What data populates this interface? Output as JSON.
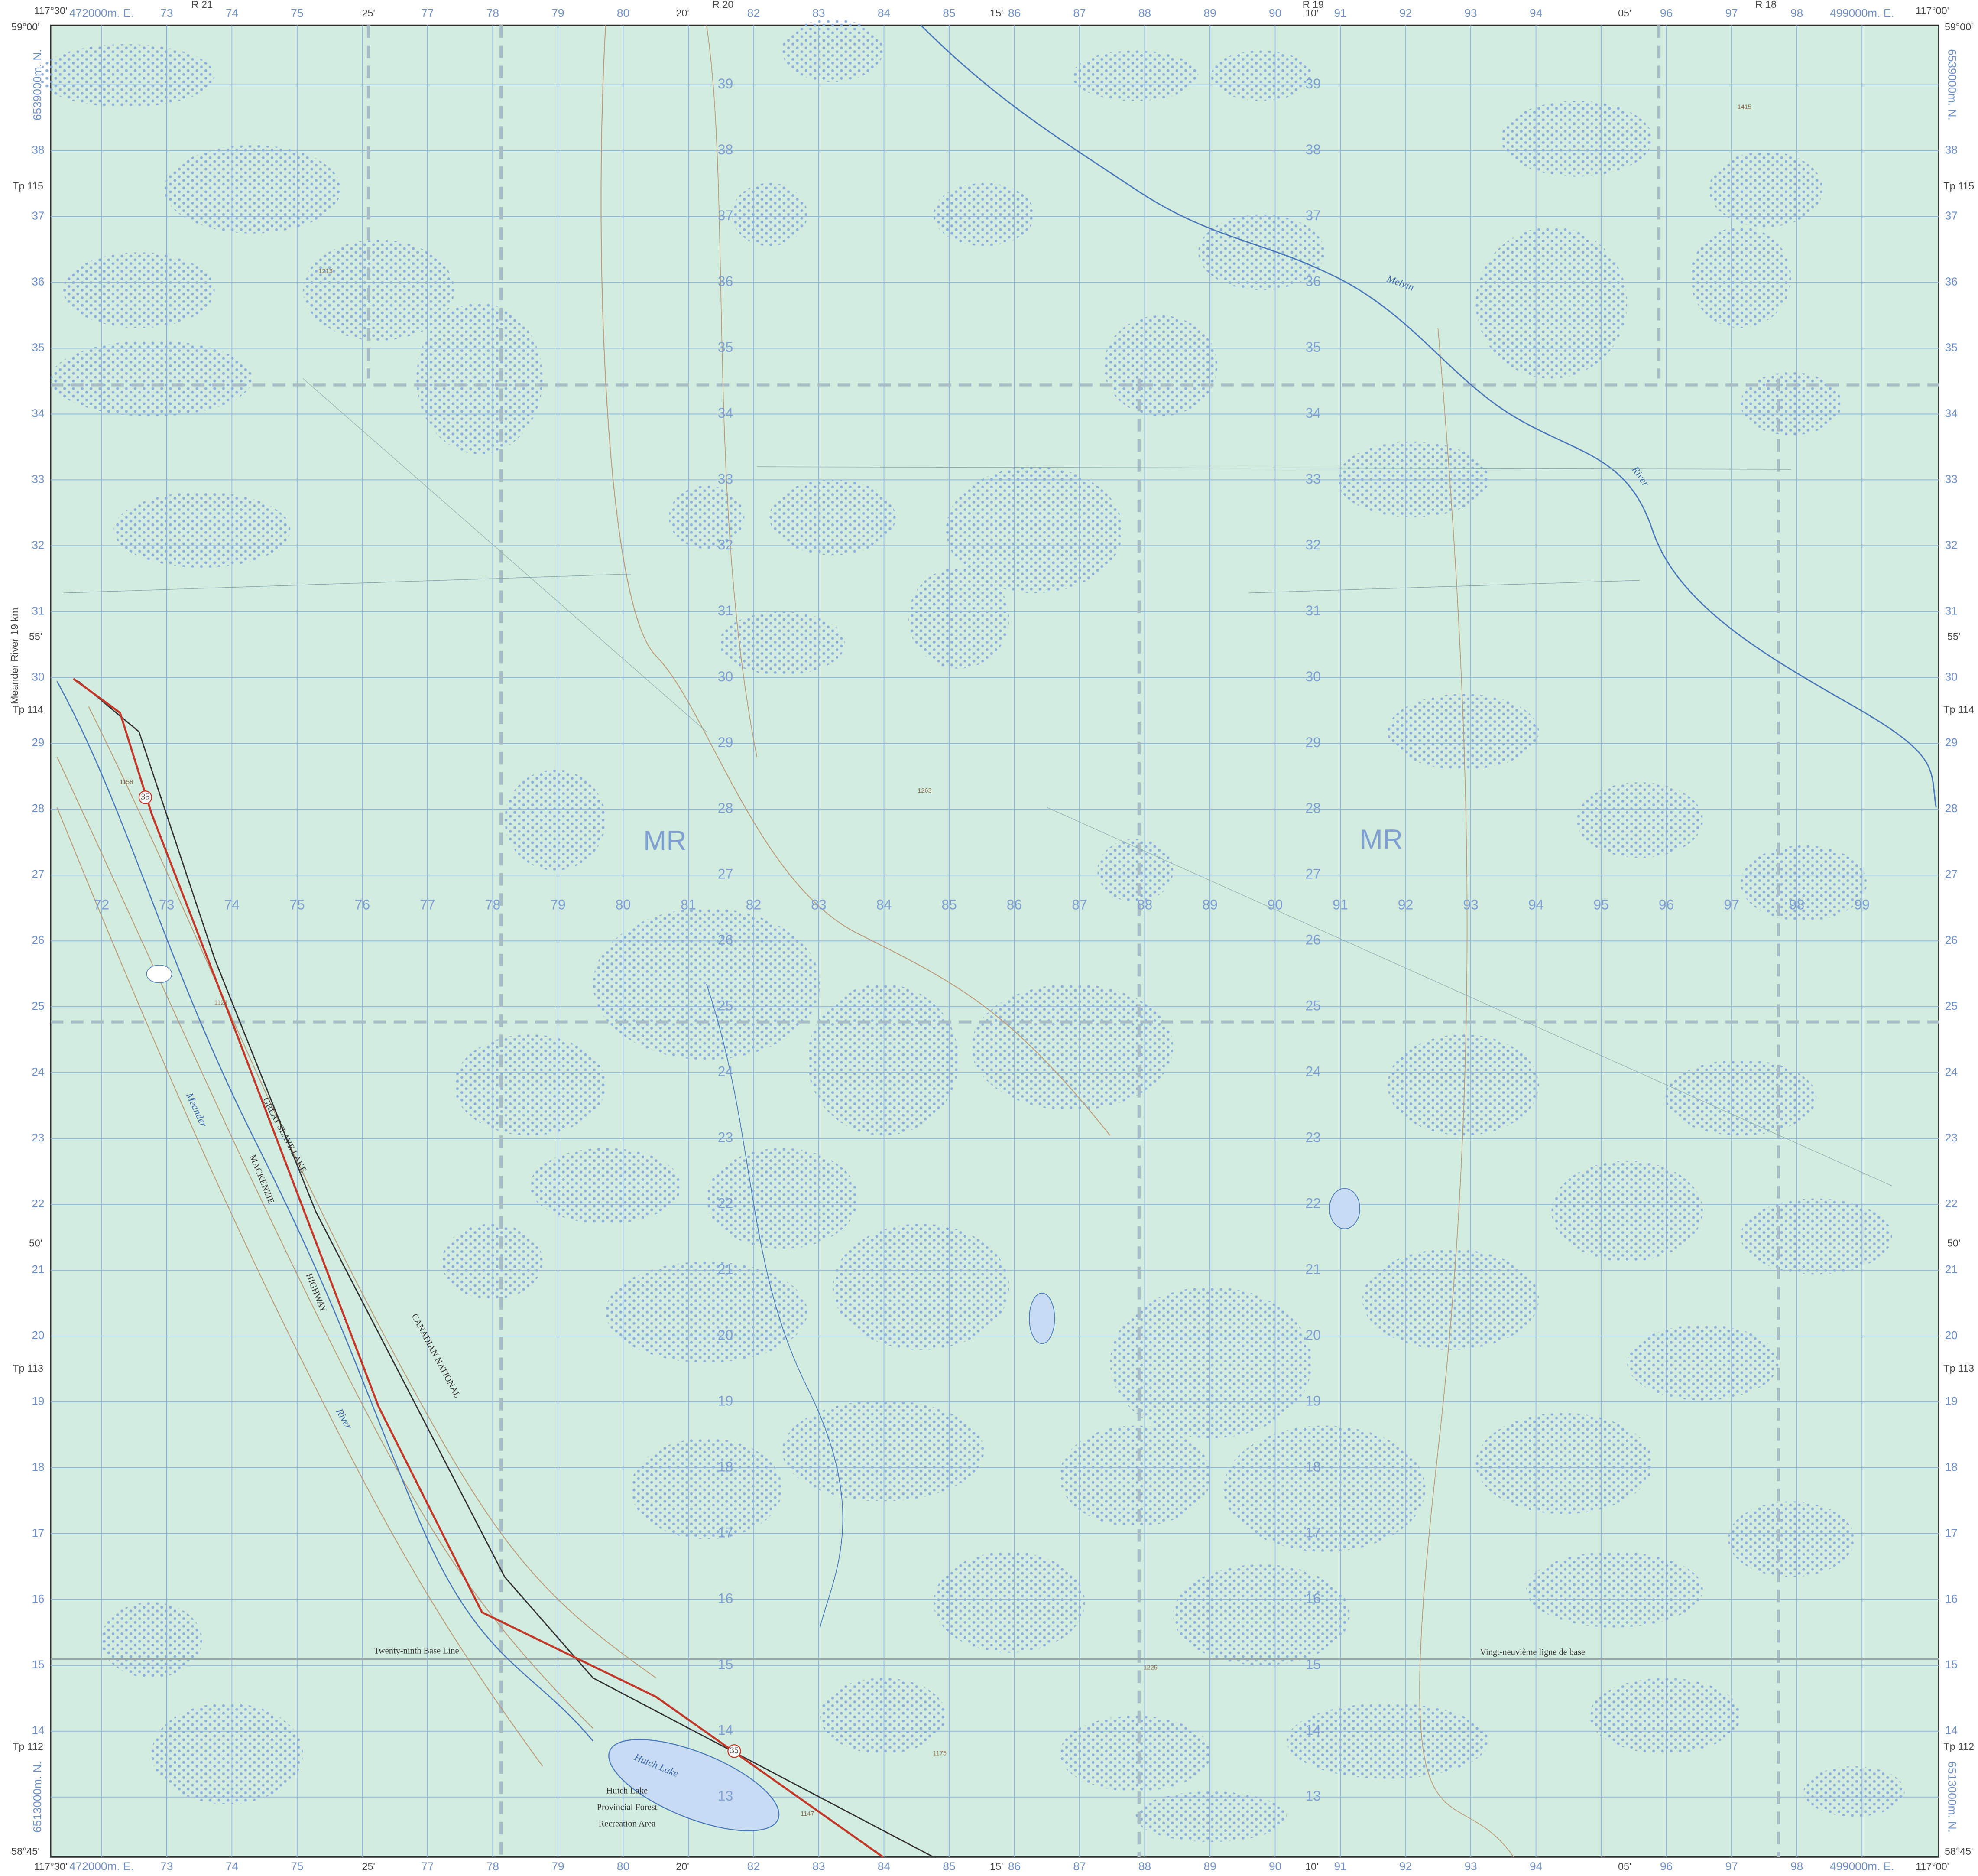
{
  "collar": {
    "corners": {
      "nw_lon": "117°30'",
      "nw_lat": "59°00'",
      "ne_lon": "117°00'",
      "ne_lat": "59°00'",
      "sw_lon": "117°30'",
      "sw_lat": "58°45'",
      "se_lon": "117°00'",
      "se_lat": "58°45'"
    },
    "eastings": [
      "472000m. E.",
      "73",
      "74",
      "75",
      "77",
      "78",
      "79",
      "80",
      "82",
      "83",
      "84",
      "85",
      "86",
      "87",
      "88",
      "89",
      "90",
      "91",
      "92",
      "93",
      "94",
      "96",
      "97",
      "98",
      "499000m. E."
    ],
    "northings": [
      "6539000m. N.",
      "38",
      "37",
      "36",
      "35",
      "34",
      "33",
      "32",
      "31",
      "30",
      "29",
      "28",
      "27",
      "26",
      "25",
      "24",
      "23",
      "22",
      "21",
      "20",
      "19",
      "18",
      "17",
      "16",
      "15",
      "14",
      "6513000m. N."
    ],
    "minutes_top": [
      "25'",
      "20'",
      "15'",
      "10'",
      "05'"
    ],
    "minutes_side": [
      "55'",
      "50'"
    ],
    "ranges": [
      "R 21",
      "R 20",
      "R 19",
      "R 18"
    ],
    "townships": [
      "Tp 115",
      "Tp 114",
      "Tp 113",
      "Tp 112"
    ],
    "edge_note": "Meander River 19 km"
  },
  "map": {
    "interior_eastings": [
      "72",
      "73",
      "74",
      "75",
      "76",
      "77",
      "78",
      "79",
      "80",
      "81",
      "82",
      "83",
      "84",
      "85",
      "86",
      "87",
      "88",
      "89",
      "90",
      "91",
      "92",
      "93",
      "94",
      "95",
      "96",
      "97",
      "98",
      "99"
    ],
    "interior_northings": [
      "39",
      "38",
      "37",
      "36",
      "35",
      "34",
      "33",
      "32",
      "31",
      "30",
      "29",
      "28",
      "27",
      "26",
      "25",
      "24",
      "23",
      "22",
      "21",
      "20",
      "19",
      "18",
      "17",
      "16",
      "15",
      "14",
      "13"
    ],
    "reserve_labels": [
      "MR",
      "MR"
    ],
    "lake": "Hutch Lake",
    "recreation_area": [
      "Hutch Lake",
      "Provincial Forest",
      "Recreation Area"
    ],
    "base_line_en": "Twenty-ninth Base Line",
    "base_line_fr": "Vingt-neuvième ligne de base",
    "railway": [
      "GREAT SLAVE LAKE",
      "CANADIAN NATIONAL"
    ],
    "highway": [
      "MACKENZIE",
      "HIGHWAY"
    ],
    "highway_shield": "35",
    "rivers": [
      "Melvin",
      "River",
      "Meander",
      "River"
    ],
    "elevations": [
      "1213",
      "1263",
      "1415",
      "1121",
      "1158",
      "1175",
      "1147",
      "1225"
    ]
  }
}
